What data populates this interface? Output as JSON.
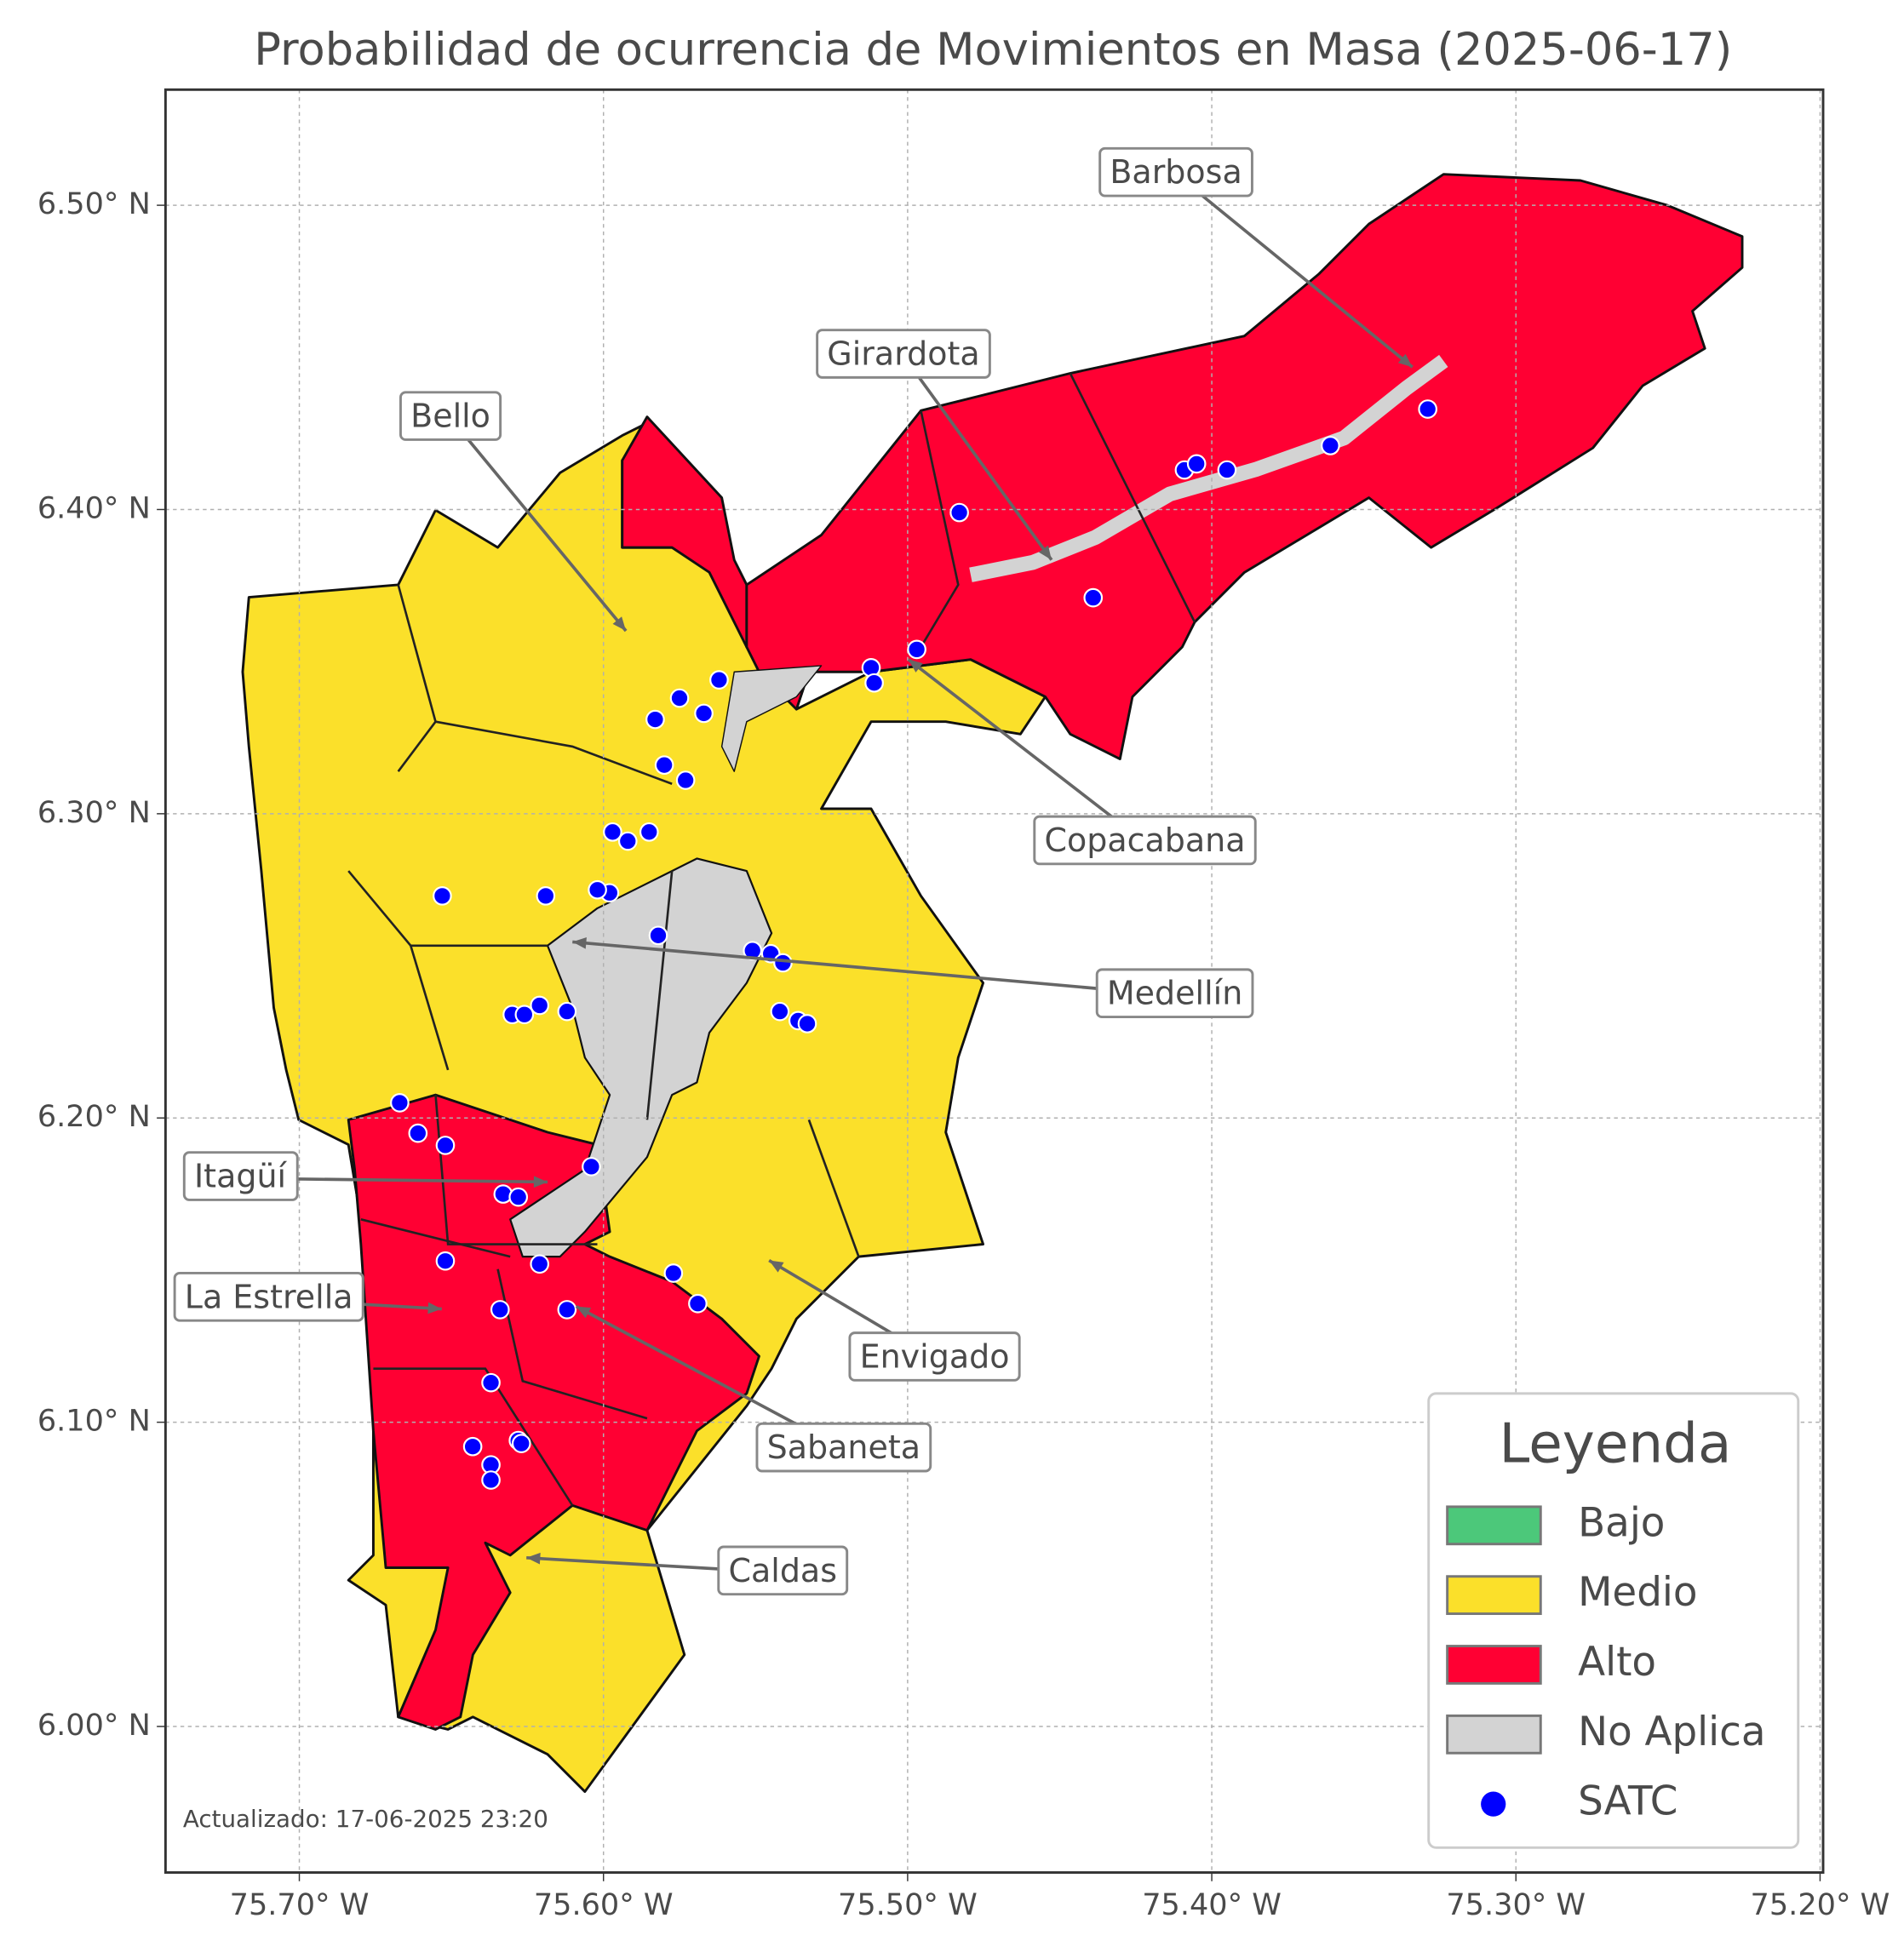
{
  "chart_data": {
    "type": "map",
    "title": "Probabilidad de ocurrencia de Movimientos en Masa (2025-06-17)",
    "xlim": [
      -75.744,
      -75.199
    ],
    "ylim": [
      5.952,
      6.538
    ],
    "xticks": [
      {
        "value": -75.7,
        "label": "75.70° W"
      },
      {
        "value": -75.6,
        "label": "75.60° W"
      },
      {
        "value": -75.5,
        "label": "75.50° W"
      },
      {
        "value": -75.4,
        "label": "75.40° W"
      },
      {
        "value": -75.3,
        "label": "75.30° W"
      },
      {
        "value": -75.2,
        "label": "75.20° W"
      }
    ],
    "yticks": [
      {
        "value": 6.0,
        "label": "6.00° N"
      },
      {
        "value": 6.1,
        "label": "6.10° N"
      },
      {
        "value": 6.2,
        "label": "6.20° N"
      },
      {
        "value": 6.3,
        "label": "6.30° N"
      },
      {
        "value": 6.4,
        "label": "6.40° N"
      },
      {
        "value": 6.5,
        "label": "6.50° N"
      }
    ],
    "grid": true,
    "legend": {
      "title": "Leyenda",
      "corner": "lower right",
      "categories": [
        {
          "name": "Bajo",
          "color": "#4cc87a"
        },
        {
          "name": "Medio",
          "color": "#fbe02a"
        },
        {
          "name": "Alto",
          "color": "#ff0033"
        },
        {
          "name": "No Aplica",
          "color": "#d3d3d3"
        }
      ]
    },
    "series": [
      {
        "name": "SATC",
        "color": "#0000ff",
        "x": [
          -75.483,
          -75.409,
          -75.405,
          -75.395,
          -75.361,
          -75.329,
          -75.439,
          -75.497,
          -75.512,
          -75.511,
          -75.562,
          -75.575,
          -75.567,
          -75.583,
          -75.58,
          -75.573,
          -75.597,
          -75.592,
          -75.585,
          -75.598,
          -75.602,
          -75.582,
          -75.619,
          -75.653,
          -75.551,
          -75.545,
          -75.541,
          -75.542,
          -75.536,
          -75.533,
          -75.621,
          -75.63,
          -75.626,
          -75.612,
          -75.667,
          -75.661,
          -75.652,
          -75.604,
          -75.633,
          -75.628,
          -75.652,
          -75.621,
          -75.577,
          -75.569,
          -75.634,
          -75.612,
          -75.637,
          -75.643,
          -75.628,
          -75.627,
          -75.637,
          -75.637
        ],
        "y": [
          6.399,
          6.413,
          6.415,
          6.413,
          6.421,
          6.433,
          6.371,
          6.354,
          6.348,
          6.343,
          6.344,
          6.338,
          6.333,
          6.331,
          6.316,
          6.311,
          6.294,
          6.291,
          6.294,
          6.274,
          6.275,
          6.26,
          6.273,
          6.273,
          6.255,
          6.254,
          6.251,
          6.235,
          6.232,
          6.231,
          6.237,
          6.234,
          6.234,
          6.235,
          6.205,
          6.195,
          6.191,
          6.184,
          6.175,
          6.174,
          6.153,
          6.152,
          6.149,
          6.139,
          6.137,
          6.137,
          6.113,
          6.092,
          6.094,
          6.093,
          6.086,
          6.081
        ]
      }
    ],
    "annotations": [
      "Barbosa",
      "Girardota",
      "Bello",
      "Copacabana",
      "Medellín",
      "Itagüí",
      "La Estrella",
      "Envigado",
      "Sabaneta",
      "Caldas"
    ],
    "footer": "Actualizado: 17-06-2025 23:20"
  }
}
